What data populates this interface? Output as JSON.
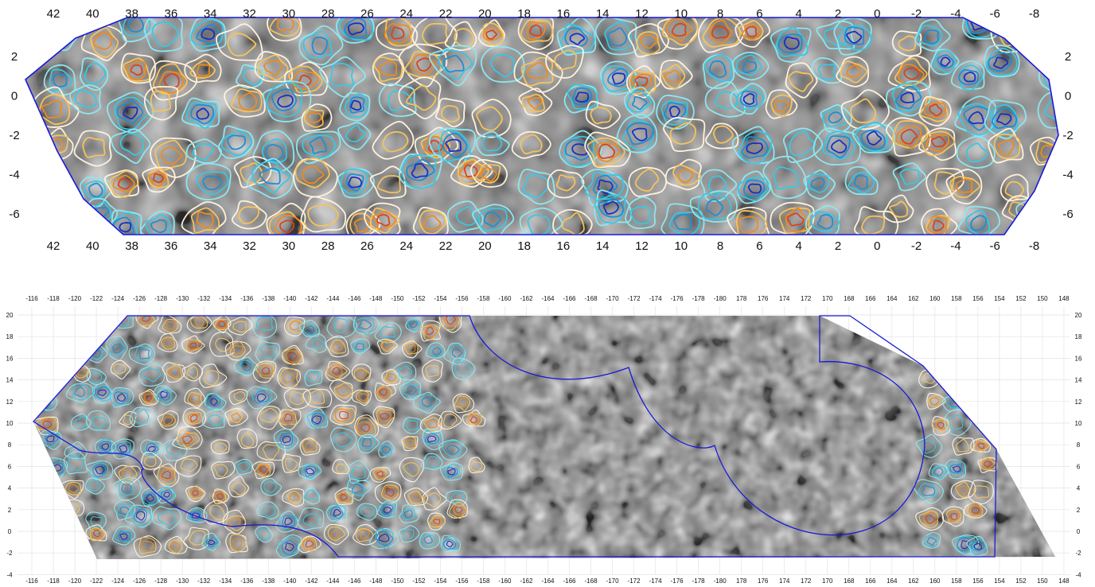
{
  "chart_data": [
    {
      "type": "heatmap",
      "title": "",
      "xlabel": "",
      "ylabel": "",
      "x_ticks": [
        "42",
        "40",
        "38",
        "36",
        "34",
        "32",
        "30",
        "28",
        "26",
        "24",
        "22",
        "20",
        "18",
        "16",
        "14",
        "12",
        "10",
        "8",
        "6",
        "4",
        "2",
        "0",
        "-2",
        "-4",
        "-6",
        "-8"
      ],
      "y_ticks": [
        "2",
        "0",
        "-2",
        "-4",
        "-6"
      ],
      "x_range": [
        43,
        -9
      ],
      "y_range": [
        -7,
        4
      ],
      "grid": false,
      "background": "grayscale intensity map",
      "contour_colors": {
        "negative": [
          "#8de6f0",
          "#38c7e6",
          "#1b8fd8",
          "#1530c8"
        ],
        "positive": [
          "#fff1dd",
          "#f7c25a",
          "#f08a1c",
          "#d9441a",
          "#8e0f12"
        ]
      },
      "footprint_outline_color": "#1a1ad8"
    },
    {
      "type": "heatmap",
      "title": "",
      "xlabel": "",
      "ylabel": "",
      "x_ticks": [
        "-116",
        "-118",
        "-120",
        "-122",
        "-124",
        "-126",
        "-128",
        "-130",
        "-132",
        "-134",
        "-136",
        "-138",
        "-140",
        "-142",
        "-144",
        "-146",
        "-148",
        "-150",
        "-152",
        "-154",
        "-156",
        "-158",
        "-160",
        "-162",
        "-164",
        "-166",
        "-168",
        "-170",
        "-172",
        "-174",
        "-176",
        "-178",
        "-180",
        "178",
        "176",
        "174",
        "172",
        "170",
        "168",
        "166",
        "164",
        "162",
        "160",
        "158",
        "156",
        "154",
        "152",
        "150",
        "148"
      ],
      "y_ticks": [
        "20",
        "18",
        "16",
        "14",
        "12",
        "10",
        "8",
        "6",
        "4",
        "2",
        "0",
        "-2",
        "-4"
      ],
      "x_range": [
        -115,
        147
      ],
      "y_range": [
        -4,
        20
      ],
      "grid": true,
      "background": "grayscale intensity map",
      "contour_colors": {
        "negative": [
          "#8de6f0",
          "#38c7e6",
          "#1b8fd8",
          "#1530c8"
        ],
        "positive": [
          "#fff1dd",
          "#f7c25a",
          "#f08a1c",
          "#d9441a",
          "#8e0f12"
        ]
      },
      "footprint_outline_color": "#1a1ad8"
    }
  ]
}
